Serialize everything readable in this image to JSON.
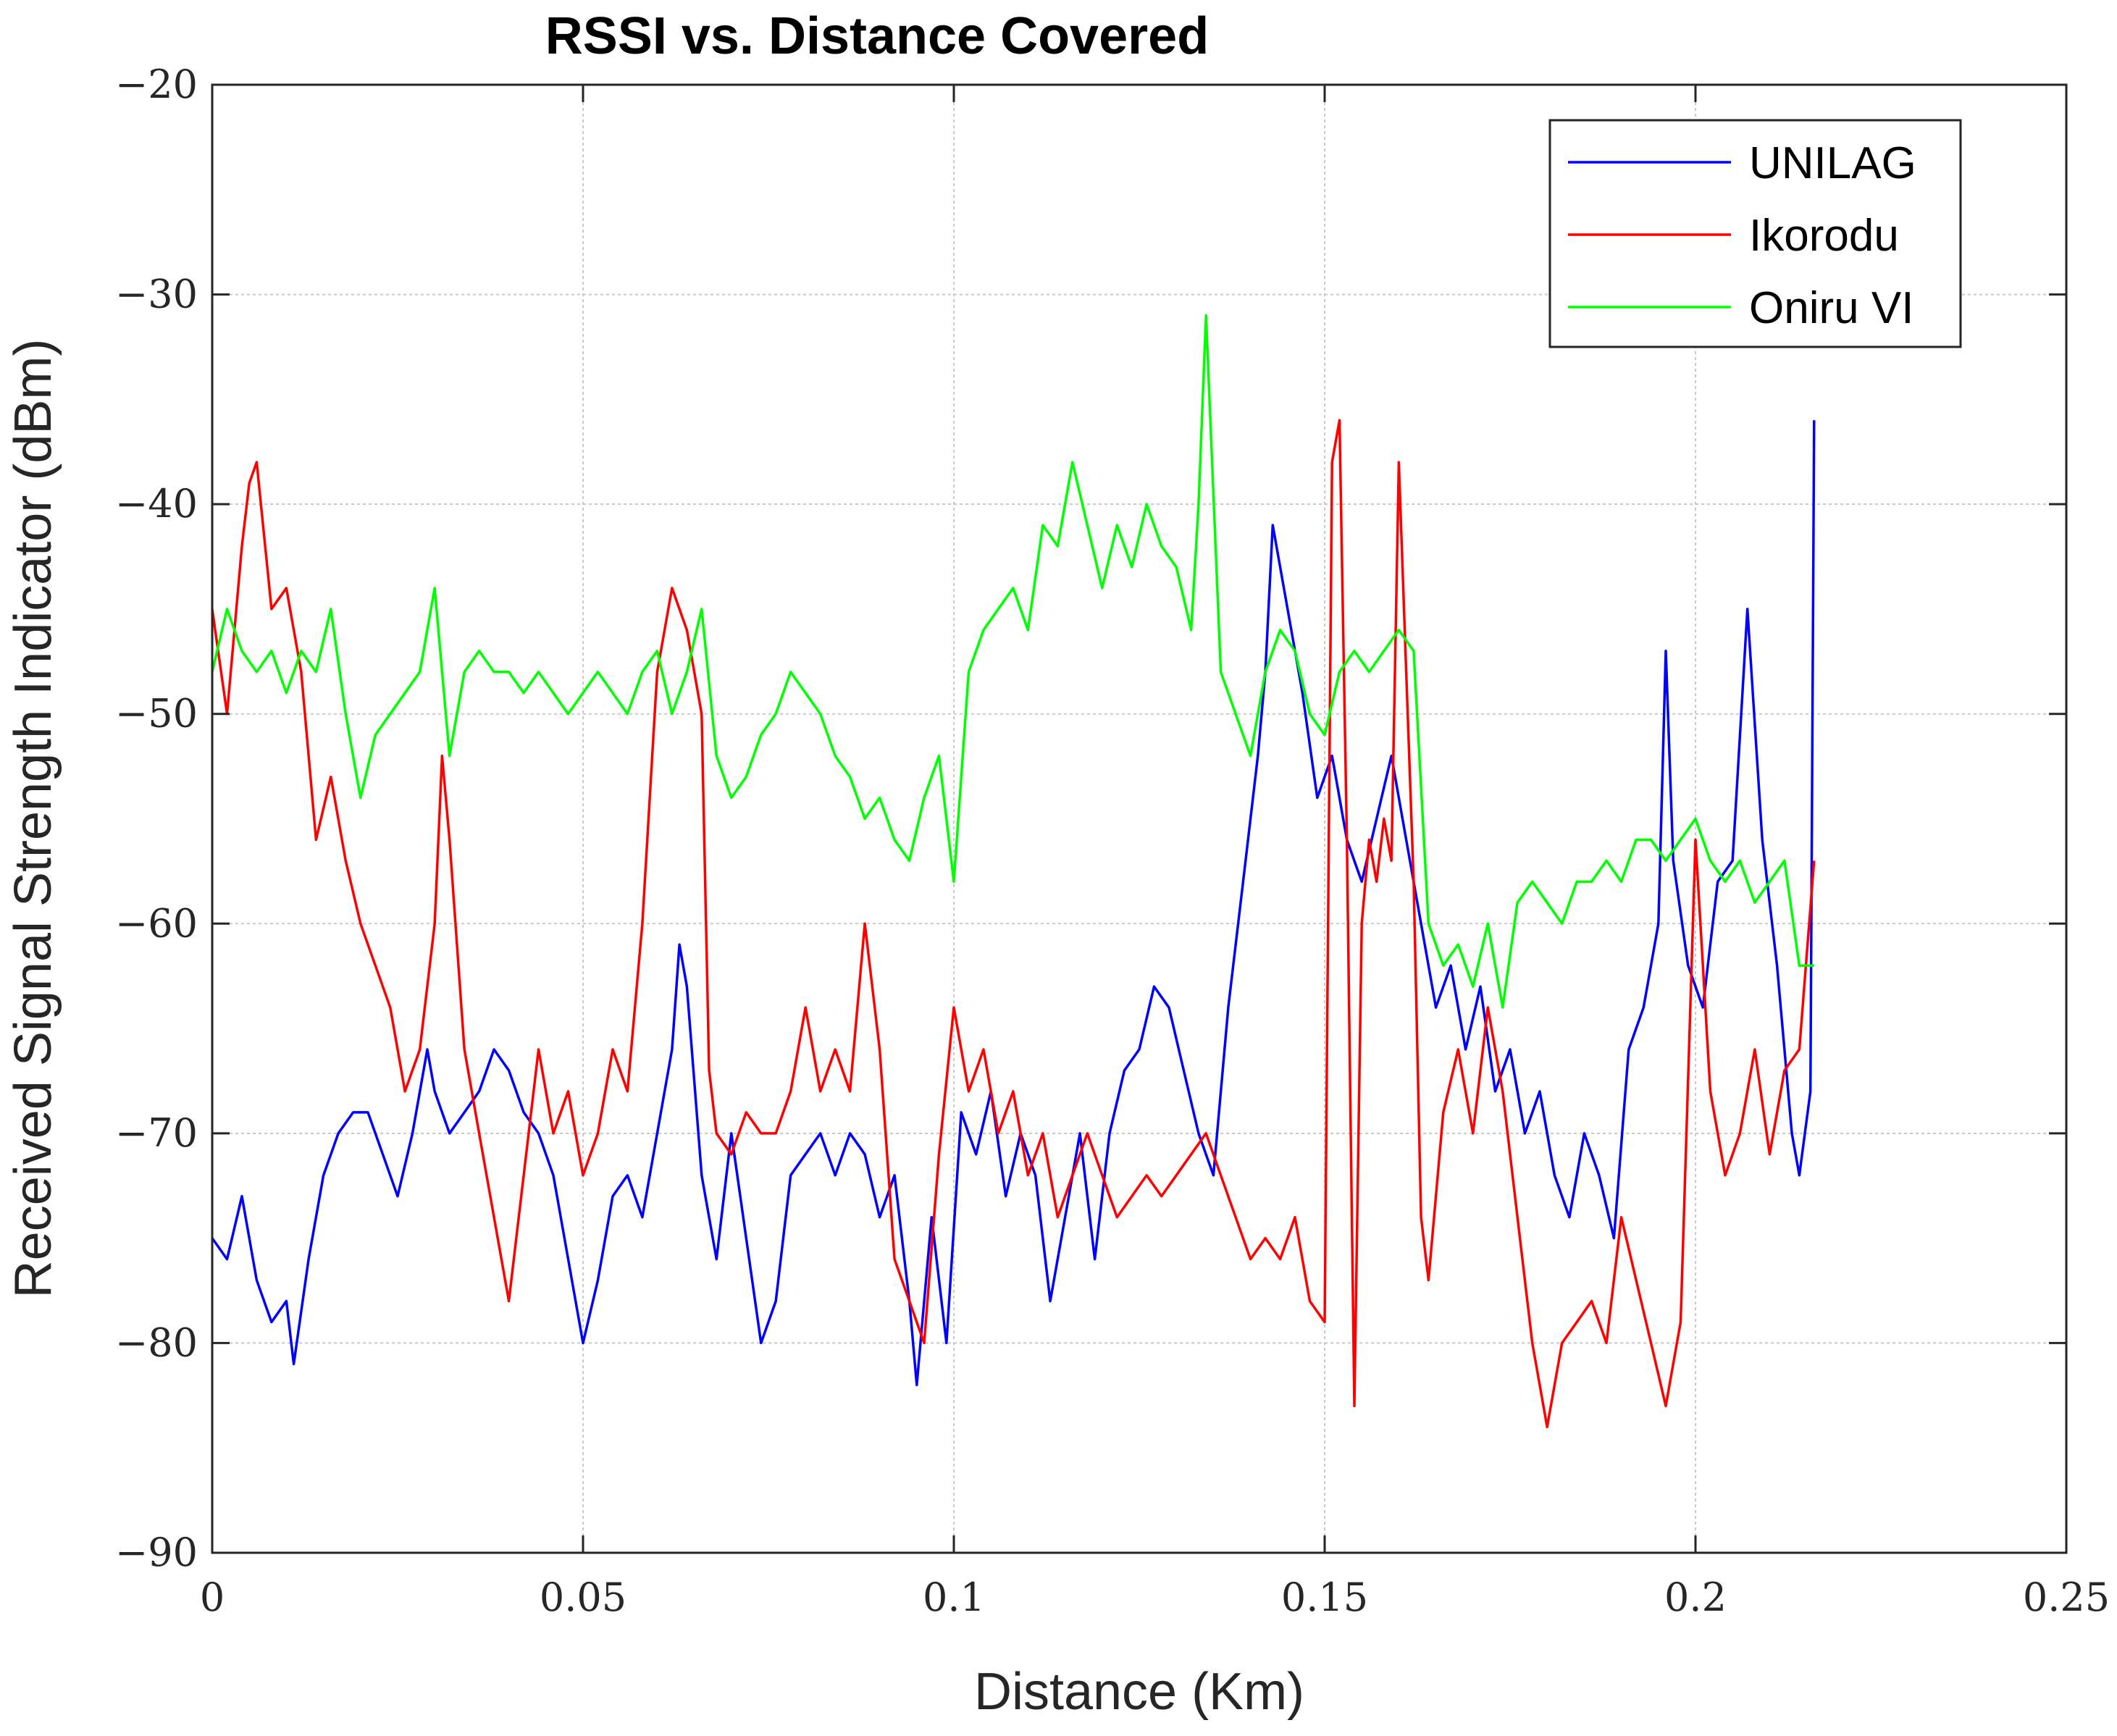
{
  "chart_data": {
    "type": "line",
    "title": "RSSI vs. Distance Covered",
    "xlabel": "Distance (Km)",
    "ylabel": "Received Signal Strength Indicator (dBm)",
    "xlim": [
      0,
      0.25
    ],
    "ylim": [
      -90,
      -20
    ],
    "xticks": [
      0,
      0.05,
      0.1,
      0.15,
      0.2,
      0.25
    ],
    "xtick_labels": [
      "0",
      "0.05",
      "0.1",
      "0.15",
      "0.2",
      "0.25"
    ],
    "yticks": [
      -90,
      -80,
      -70,
      -60,
      -50,
      -40,
      -30,
      -20
    ],
    "ytick_labels": [
      "−90",
      "−80",
      "−70",
      "−60",
      "−50",
      "−40",
      "−30",
      "−20"
    ],
    "grid": true,
    "legend_position": "top-right",
    "series": [
      {
        "name": "UNILAG",
        "color": "#0000ff",
        "x": [
          0,
          0.002,
          0.004,
          0.006,
          0.008,
          0.01,
          0.011,
          0.013,
          0.015,
          0.017,
          0.019,
          0.021,
          0.023,
          0.025,
          0.027,
          0.029,
          0.03,
          0.032,
          0.034,
          0.036,
          0.038,
          0.04,
          0.042,
          0.044,
          0.046,
          0.048,
          0.05,
          0.052,
          0.054,
          0.056,
          0.058,
          0.06,
          0.062,
          0.063,
          0.064,
          0.066,
          0.068,
          0.07,
          0.072,
          0.074,
          0.076,
          0.078,
          0.08,
          0.082,
          0.084,
          0.086,
          0.088,
          0.09,
          0.092,
          0.094,
          0.095,
          0.097,
          0.099,
          0.101,
          0.103,
          0.105,
          0.107,
          0.109,
          0.111,
          0.113,
          0.115,
          0.117,
          0.119,
          0.121,
          0.123,
          0.125,
          0.127,
          0.129,
          0.131,
          0.133,
          0.135,
          0.137,
          0.139,
          0.141,
          0.142,
          0.143,
          0.145,
          0.147,
          0.149,
          0.151,
          0.153,
          0.155,
          0.157,
          0.159,
          0.161,
          0.163,
          0.165,
          0.167,
          0.169,
          0.171,
          0.173,
          0.175,
          0.177,
          0.179,
          0.181,
          0.183,
          0.185,
          0.187,
          0.189,
          0.191,
          0.193,
          0.195,
          0.196,
          0.197,
          0.199,
          0.201,
          0.203,
          0.205,
          0.207,
          0.209,
          0.211,
          0.213,
          0.214,
          0.2155,
          0.216
        ],
        "y": [
          -75,
          -76,
          -73,
          -77,
          -79,
          -78,
          -81,
          -76,
          -72,
          -70,
          -69,
          -69,
          -71,
          -73,
          -70,
          -66,
          -68,
          -70,
          -69,
          -68,
          -66,
          -67,
          -69,
          -70,
          -72,
          -76,
          -80,
          -77,
          -73,
          -72,
          -74,
          -70,
          -66,
          -61,
          -63,
          -72,
          -76,
          -70,
          -75,
          -80,
          -78,
          -72,
          -71,
          -70,
          -72,
          -70,
          -71,
          -74,
          -72,
          -78,
          -82,
          -74,
          -80,
          -69,
          -71,
          -68,
          -73,
          -70,
          -72,
          -78,
          -74,
          -70,
          -76,
          -70,
          -67,
          -66,
          -63,
          -64,
          -67,
          -70,
          -72,
          -64,
          -58,
          -52,
          -48,
          -41,
          -45,
          -49,
          -54,
          -52,
          -56,
          -58,
          -55,
          -52,
          -56,
          -60,
          -64,
          -62,
          -66,
          -63,
          -68,
          -66,
          -70,
          -68,
          -72,
          -74,
          -70,
          -72,
          -75,
          -66,
          -64,
          -60,
          -47,
          -57,
          -62,
          -64,
          -58,
          -57,
          -45,
          -56,
          -62,
          -70,
          -72,
          -68,
          -36
        ],
        "polyline_name": "unilag-series-line"
      },
      {
        "name": "Ikorodu",
        "color": "#ff0000",
        "x": [
          0,
          0.002,
          0.004,
          0.005,
          0.006,
          0.008,
          0.01,
          0.012,
          0.014,
          0.016,
          0.018,
          0.02,
          0.022,
          0.024,
          0.026,
          0.028,
          0.03,
          0.031,
          0.032,
          0.034,
          0.036,
          0.038,
          0.04,
          0.042,
          0.044,
          0.046,
          0.048,
          0.05,
          0.052,
          0.054,
          0.056,
          0.058,
          0.06,
          0.062,
          0.064,
          0.066,
          0.067,
          0.068,
          0.07,
          0.072,
          0.074,
          0.076,
          0.078,
          0.08,
          0.082,
          0.084,
          0.086,
          0.088,
          0.09,
          0.092,
          0.094,
          0.096,
          0.098,
          0.1,
          0.102,
          0.104,
          0.106,
          0.108,
          0.11,
          0.112,
          0.114,
          0.116,
          0.118,
          0.12,
          0.122,
          0.124,
          0.126,
          0.128,
          0.13,
          0.132,
          0.134,
          0.136,
          0.138,
          0.14,
          0.142,
          0.144,
          0.146,
          0.148,
          0.15,
          0.151,
          0.152,
          0.153,
          0.154,
          0.155,
          0.156,
          0.157,
          0.158,
          0.159,
          0.16,
          0.161,
          0.162,
          0.163,
          0.164,
          0.166,
          0.168,
          0.17,
          0.172,
          0.174,
          0.176,
          0.178,
          0.18,
          0.182,
          0.184,
          0.186,
          0.188,
          0.19,
          0.192,
          0.194,
          0.196,
          0.198,
          0.2,
          0.202,
          0.204,
          0.206,
          0.208,
          0.21,
          0.212,
          0.214,
          0.216
        ],
        "y": [
          -45,
          -50,
          -42,
          -39,
          -38,
          -45,
          -44,
          -48,
          -56,
          -53,
          -57,
          -60,
          -62,
          -64,
          -68,
          -66,
          -60,
          -52,
          -56,
          -66,
          -70,
          -74,
          -78,
          -72,
          -66,
          -70,
          -68,
          -72,
          -70,
          -66,
          -68,
          -60,
          -48,
          -44,
          -46,
          -50,
          -67,
          -70,
          -71,
          -69,
          -70,
          -70,
          -68,
          -64,
          -68,
          -66,
          -68,
          -60,
          -66,
          -76,
          -78,
          -80,
          -71,
          -64,
          -68,
          -66,
          -70,
          -68,
          -72,
          -70,
          -74,
          -72,
          -70,
          -72,
          -74,
          -73,
          -72,
          -73,
          -72,
          -71,
          -70,
          -72,
          -74,
          -76,
          -75,
          -76,
          -74,
          -78,
          -79,
          -38,
          -36,
          -56,
          -83,
          -60,
          -56,
          -58,
          -55,
          -57,
          -38,
          -48,
          -58,
          -74,
          -77,
          -69,
          -66,
          -70,
          -64,
          -68,
          -74,
          -80,
          -84,
          -80,
          -79,
          -78,
          -80,
          -74,
          -77,
          -80,
          -83,
          -79,
          -56,
          -68,
          -72,
          -70,
          -66,
          -71,
          -67,
          -66,
          -57
        ],
        "polyline_name": "ikorodu-series-line"
      },
      {
        "name": "Oniru VI",
        "color": "#00ff00",
        "x": [
          0,
          0.002,
          0.004,
          0.006,
          0.008,
          0.01,
          0.012,
          0.014,
          0.016,
          0.018,
          0.02,
          0.022,
          0.024,
          0.026,
          0.028,
          0.03,
          0.032,
          0.034,
          0.036,
          0.038,
          0.04,
          0.042,
          0.044,
          0.046,
          0.048,
          0.05,
          0.052,
          0.054,
          0.056,
          0.058,
          0.06,
          0.062,
          0.064,
          0.066,
          0.068,
          0.07,
          0.072,
          0.074,
          0.076,
          0.078,
          0.08,
          0.082,
          0.084,
          0.086,
          0.088,
          0.09,
          0.092,
          0.094,
          0.096,
          0.098,
          0.1,
          0.102,
          0.104,
          0.106,
          0.108,
          0.11,
          0.112,
          0.114,
          0.116,
          0.118,
          0.12,
          0.122,
          0.124,
          0.126,
          0.128,
          0.13,
          0.132,
          0.133,
          0.134,
          0.136,
          0.138,
          0.14,
          0.142,
          0.144,
          0.146,
          0.148,
          0.15,
          0.152,
          0.154,
          0.156,
          0.158,
          0.16,
          0.162,
          0.164,
          0.166,
          0.168,
          0.17,
          0.172,
          0.174,
          0.176,
          0.178,
          0.18,
          0.182,
          0.184,
          0.186,
          0.188,
          0.19,
          0.192,
          0.194,
          0.196,
          0.198,
          0.2,
          0.202,
          0.204,
          0.206,
          0.208,
          0.21,
          0.212,
          0.214,
          0.216
        ],
        "y": [
          -48,
          -45,
          -47,
          -48,
          -47,
          -49,
          -47,
          -48,
          -45,
          -50,
          -54,
          -51,
          -50,
          -49,
          -48,
          -44,
          -52,
          -48,
          -47,
          -48,
          -48,
          -49,
          -48,
          -49,
          -50,
          -49,
          -48,
          -49,
          -50,
          -48,
          -47,
          -50,
          -48,
          -45,
          -52,
          -54,
          -53,
          -51,
          -50,
          -48,
          -49,
          -50,
          -52,
          -53,
          -55,
          -54,
          -56,
          -57,
          -54,
          -52,
          -58,
          -48,
          -46,
          -45,
          -44,
          -46,
          -41,
          -42,
          -38,
          -41,
          -44,
          -41,
          -43,
          -40,
          -42,
          -43,
          -46,
          -40,
          -31,
          -48,
          -50,
          -52,
          -48,
          -46,
          -47,
          -50,
          -51,
          -48,
          -47,
          -48,
          -47,
          -46,
          -47,
          -60,
          -62,
          -61,
          -63,
          -60,
          -64,
          -59,
          -58,
          -59,
          -60,
          -58,
          -58,
          -57,
          -58,
          -56,
          -56,
          -57,
          -56,
          -55,
          -57,
          -58,
          -57,
          -59,
          -58,
          -57,
          -62,
          -62
        ],
        "polyline_name": "oniru-series-line"
      }
    ]
  }
}
